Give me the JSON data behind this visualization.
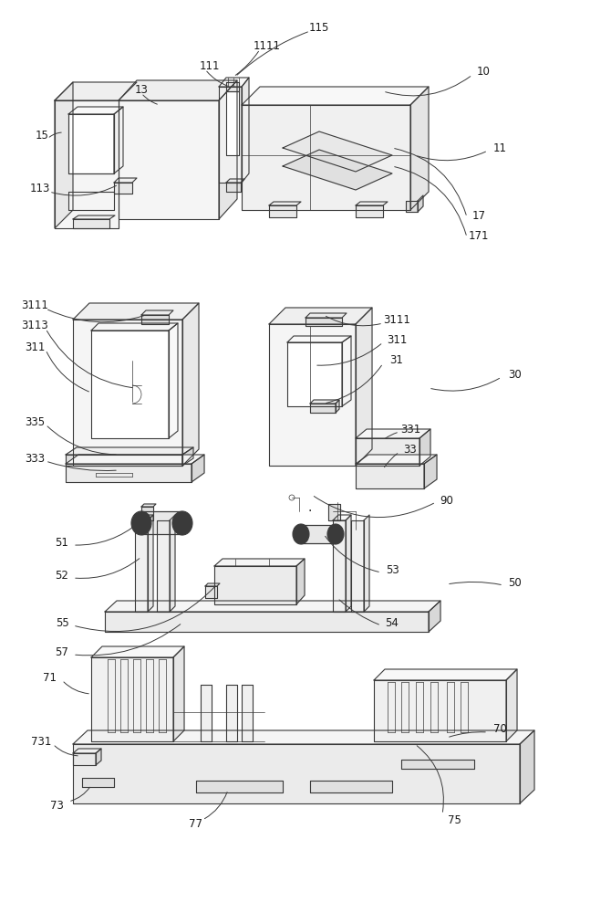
{
  "bg_color": "#ffffff",
  "lc": "#3a3a3a",
  "lw": 0.8,
  "tlw": 0.5,
  "fig_width": 6.7,
  "fig_height": 10.0,
  "dpi": 100
}
